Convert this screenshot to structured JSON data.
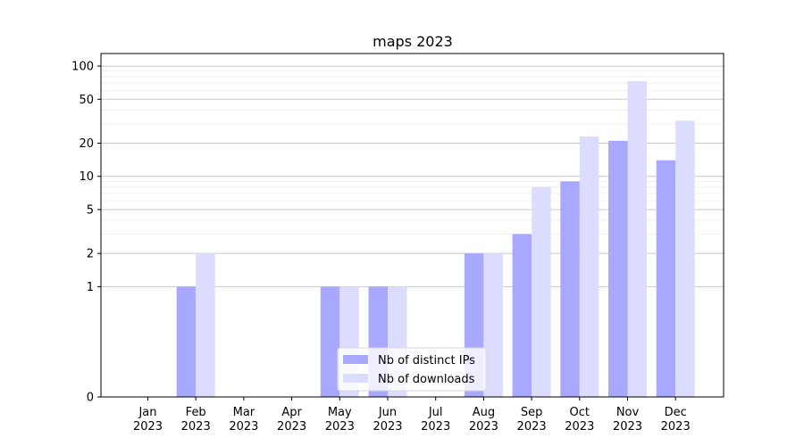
{
  "chart_data": {
    "type": "bar",
    "title": "maps 2023",
    "xlabel": "",
    "ylabel": "",
    "categories": [
      [
        "Jan",
        "2023"
      ],
      [
        "Feb",
        "2023"
      ],
      [
        "Mar",
        "2023"
      ],
      [
        "Apr",
        "2023"
      ],
      [
        "May",
        "2023"
      ],
      [
        "Jun",
        "2023"
      ],
      [
        "Jul",
        "2023"
      ],
      [
        "Aug",
        "2023"
      ],
      [
        "Sep",
        "2023"
      ],
      [
        "Oct",
        "2023"
      ],
      [
        "Nov",
        "2023"
      ],
      [
        "Dec",
        "2023"
      ]
    ],
    "series": [
      {
        "name": "Nb of distinct IPs",
        "color": "#a8a8ff",
        "values": [
          0,
          1,
          0,
          0,
          1,
          1,
          0,
          2,
          3,
          9,
          21,
          14
        ]
      },
      {
        "name": "Nb of downloads",
        "color": "#dcdcff",
        "values": [
          0,
          2,
          0,
          0,
          1,
          1,
          0,
          2,
          8,
          23,
          73,
          32
        ]
      }
    ],
    "yscale": "symlog",
    "yticks": [
      0,
      1,
      2,
      5,
      10,
      20,
      50,
      100
    ],
    "ylim": [
      0,
      130
    ],
    "grid": true,
    "legend": "lower-center"
  }
}
